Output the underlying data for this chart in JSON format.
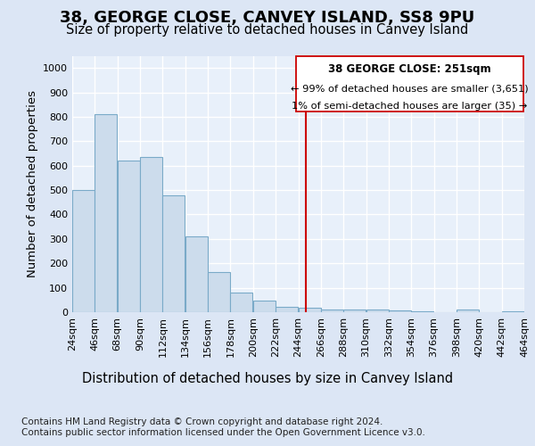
{
  "title": "38, GEORGE CLOSE, CANVEY ISLAND, SS8 9PU",
  "subtitle": "Size of property relative to detached houses in Canvey Island",
  "xlabel": "Distribution of detached houses by size in Canvey Island",
  "ylabel": "Number of detached properties",
  "footer_line1": "Contains HM Land Registry data © Crown copyright and database right 2024.",
  "footer_line2": "Contains public sector information licensed under the Open Government Licence v3.0.",
  "bins": [
    24,
    46,
    68,
    90,
    112,
    134,
    156,
    178,
    200,
    222,
    244,
    266,
    288,
    310,
    332,
    354,
    376,
    398,
    420,
    442,
    464
  ],
  "bar_heights": [
    500,
    810,
    622,
    635,
    480,
    312,
    163,
    82,
    46,
    23,
    17,
    12,
    10,
    10,
    7,
    2,
    0,
    10,
    0,
    4
  ],
  "bar_color": "#ccdcec",
  "bar_edge_color": "#7aaac8",
  "vline_x": 251,
  "vline_color": "#cc0000",
  "annotation_title": "38 GEORGE CLOSE: 251sqm",
  "annotation_line1": "← 99% of detached houses are smaller (3,651)",
  "annotation_line2": "1% of semi-detached houses are larger (35) →",
  "annotation_box_edge": "#cc0000",
  "ylim": [
    0,
    1050
  ],
  "yticks": [
    0,
    100,
    200,
    300,
    400,
    500,
    600,
    700,
    800,
    900,
    1000
  ],
  "bg_color": "#dce6f5",
  "plot_bg_color": "#e8f0fa",
  "grid_color": "#ffffff",
  "title_fontsize": 13,
  "subtitle_fontsize": 10.5,
  "xlabel_fontsize": 10.5,
  "ylabel_fontsize": 9.5,
  "tick_fontsize": 8,
  "footer_fontsize": 7.5
}
